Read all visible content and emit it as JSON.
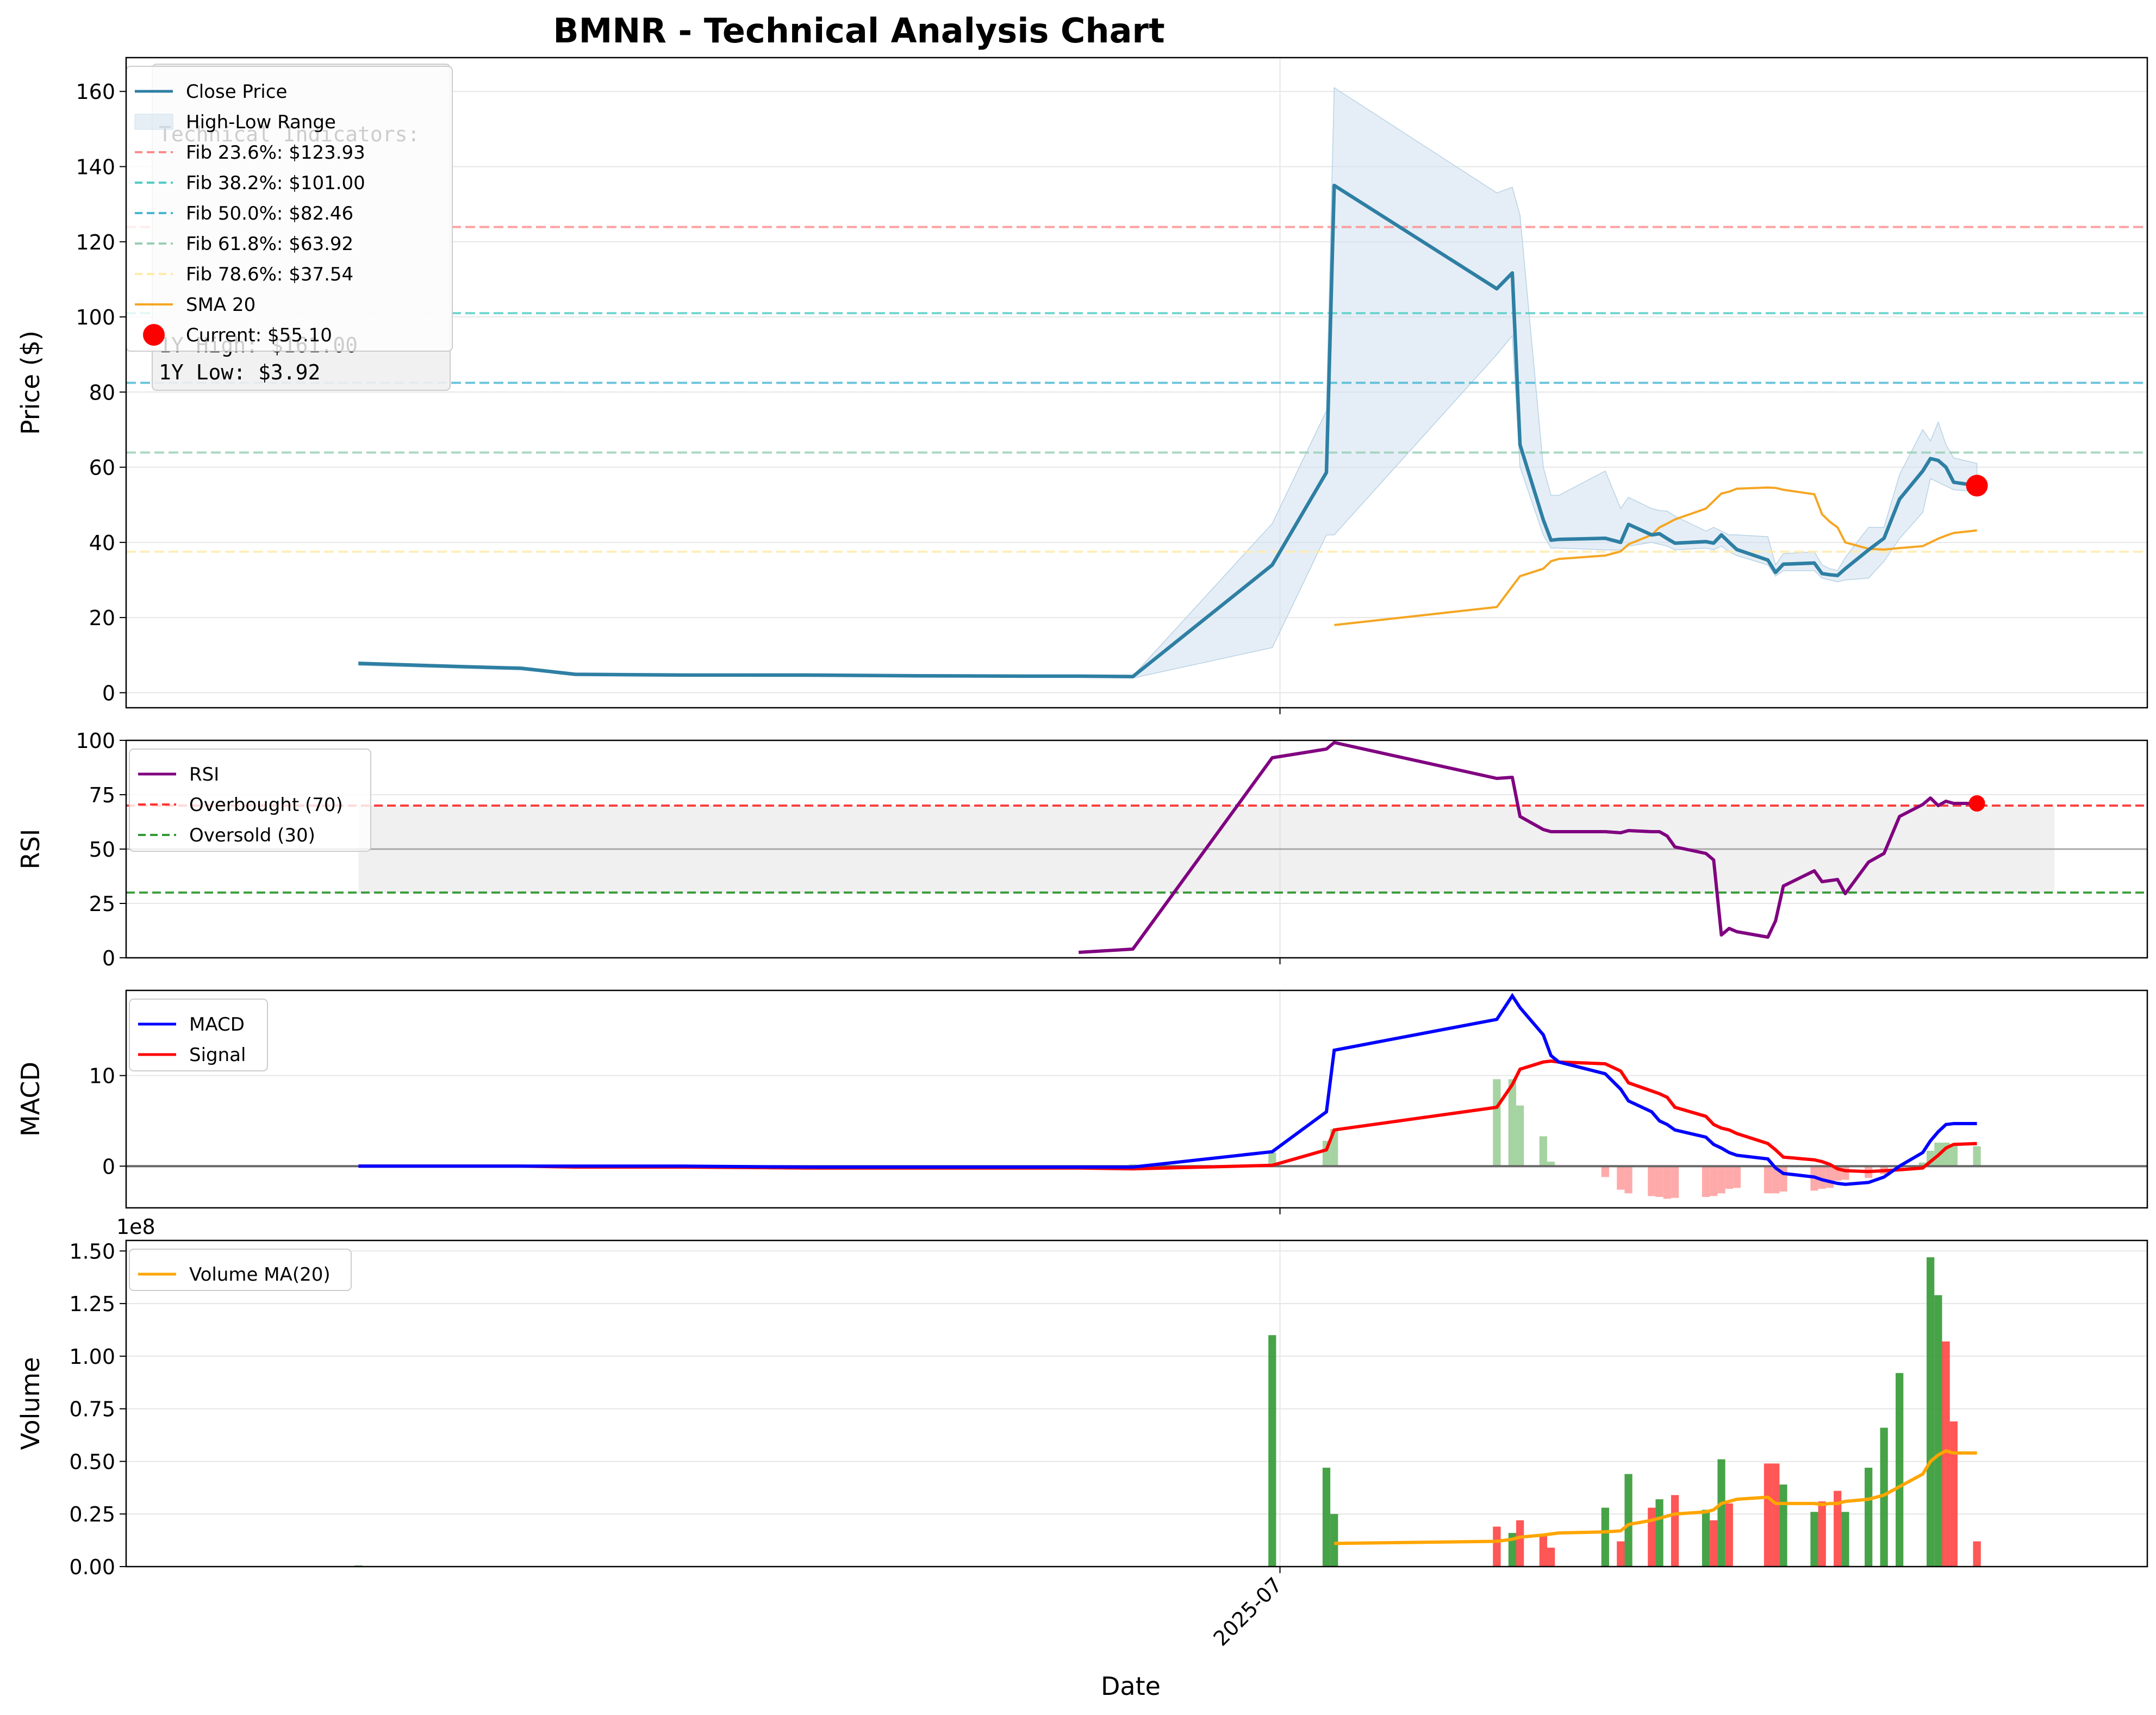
{
  "chart_data": {
    "title": "BMNR - Technical Analysis Chart",
    "xlabel": "Date",
    "x_tick_labels": [
      "2025-07"
    ],
    "dates": [
      "2025-03-04",
      "2025-03-18",
      "2025-03-25",
      "2025-04-01",
      "2025-04-15",
      "2025-05-01",
      "2025-05-15",
      "2025-05-29",
      "2025-06-05",
      "2025-06-12",
      "2025-06-30",
      "2025-07-07",
      "2025-07-08",
      "2025-07-09",
      "2025-07-10",
      "2025-07-29",
      "2025-07-31",
      "2025-08-01",
      "2025-08-04",
      "2025-08-05",
      "2025-08-06",
      "2025-08-12",
      "2025-08-14",
      "2025-08-15",
      "2025-08-18",
      "2025-08-19",
      "2025-08-20",
      "2025-08-21",
      "2025-08-25",
      "2025-08-26",
      "2025-08-27",
      "2025-08-28",
      "2025-08-29",
      "2025-09-02",
      "2025-09-03",
      "2025-09-04",
      "2025-09-08",
      "2025-09-09",
      "2025-09-10",
      "2025-09-11",
      "2025-09-12",
      "2025-09-15",
      "2025-09-17",
      "2025-09-19",
      "2025-09-22",
      "2025-09-23",
      "2025-09-24",
      "2025-09-25",
      "2025-09-26",
      "2025-09-29",
      "2025-10-01",
      "2025-10-02",
      "2025-10-03",
      "2025-10-06",
      "2025-10-07",
      "2025-10-08",
      "2025-10-09"
    ],
    "panels": [
      {
        "id": "price",
        "type": "line",
        "ylabel": "Price ($)",
        "ylim": [
          -4,
          169
        ],
        "yticks": [
          0,
          20,
          40,
          60,
          80,
          100,
          120,
          140,
          160
        ],
        "series": [
          {
            "name": "Close Price",
            "color": "#2e7fa3",
            "values": [
              7.8,
              6.9,
              6.5,
              4.9,
              4.7,
              4.7,
              4.5,
              4.4,
              4.4,
              4.3,
              34.0,
              58.6,
              135.0,
              null,
              null,
              107.5,
              111.7,
              66.0,
              46.0,
              40.6,
              40.8,
              41.1,
              40.0,
              44.8,
              42.0,
              42.3,
              41.0,
              39.8,
              40.2,
              39.8,
              42.0,
              40.0,
              38.1,
              35.3,
              32.0,
              34.2,
              34.5,
              31.7,
              31.4,
              31.2,
              33.0,
              38.0,
              41.1,
              51.5,
              59.0,
              62.3,
              61.8,
              60.0,
              56.0,
              55.1,
              null,
              null,
              null,
              null,
              null,
              null,
              null
            ]
          },
          {
            "name": "High-Low Range",
            "color": "#cfe0ee",
            "high": [
              8.2,
              7.1,
              6.7,
              5.2,
              4.9,
              4.9,
              4.7,
              4.6,
              4.6,
              4.5,
              45.0,
              75.0,
              161.0,
              null,
              null,
              133.0,
              134.5,
              127.0,
              60.0,
              52.5,
              52.5,
              59.0,
              49.0,
              52.0,
              49.0,
              48.5,
              48.3,
              47.0,
              43.0,
              44.0,
              43.0,
              42.0,
              42.0,
              41.5,
              34.0,
              37.0,
              37.5,
              34.0,
              33.0,
              32.5,
              36.0,
              44.0,
              44.0,
              58.0,
              70.0,
              67.0,
              72.0,
              66.0,
              62.5,
              61.0,
              null,
              null,
              null,
              null,
              null,
              null,
              null
            ],
            "low": [
              7.3,
              6.5,
              6.1,
              4.6,
              4.4,
              4.3,
              4.2,
              4.1,
              4.1,
              3.9,
              12.0,
              42.0,
              42.0,
              null,
              null,
              90.0,
              95.0,
              60.0,
              42.0,
              38.5,
              38.5,
              38.0,
              38.0,
              39.0,
              40.0,
              39.5,
              39.0,
              38.0,
              38.5,
              38.0,
              39.0,
              37.5,
              36.5,
              34.0,
              31.0,
              32.5,
              32.5,
              30.5,
              30.0,
              29.5,
              30.0,
              30.5,
              35.0,
              41.0,
              48.0,
              57.0,
              56.0,
              55.0,
              54.0,
              53.5,
              null,
              null,
              null,
              null,
              null,
              null,
              null
            ]
          },
          {
            "name": "SMA 20",
            "color": "#f5a623",
            "values": [
              null,
              null,
              null,
              null,
              null,
              null,
              null,
              null,
              null,
              null,
              null,
              null,
              18.0,
              null,
              null,
              22.8,
              28.3,
              31.0,
              33.0,
              35.0,
              35.6,
              36.5,
              37.6,
              39.5,
              42.0,
              44.0,
              45.0,
              46.1,
              49.0,
              51.0,
              53.0,
              53.5,
              54.3,
              54.6,
              54.5,
              54.0,
              52.8,
              47.5,
              45.5,
              44.0,
              40.0,
              38.3,
              38.1,
              38.5,
              39.0,
              40.0,
              41.0,
              41.8,
              42.5,
              43.2,
              null,
              null,
              null,
              null,
              null,
              null,
              null
            ]
          }
        ],
        "fibonacci": [
          {
            "label": "Fib 23.6%: $123.93",
            "value": 123.93,
            "color": "#ff8a8a"
          },
          {
            "label": "Fib 38.2%: $101.00",
            "value": 101.0,
            "color": "#4ecdc4"
          },
          {
            "label": "Fib 50.0%: $82.46",
            "value": 82.46,
            "color": "#45b7d1"
          },
          {
            "label": "Fib 61.8%: $63.92",
            "value": 63.92,
            "color": "#96ceb4"
          },
          {
            "label": "Fib 78.6%: $37.54",
            "value": 37.54,
            "color": "#ffeaa7"
          }
        ],
        "current": {
          "label": "Current: $55.10",
          "value": 55.1,
          "color": "#ff0000"
        },
        "legend": [
          "Close Price",
          "High-Low Range",
          "Fib 23.6%: $123.93",
          "Fib 38.2%: $101.00",
          "Fib 50.0%: $82.46",
          "Fib 61.8%: $63.92",
          "Fib 78.6%: $37.54",
          "SMA 20",
          "Current: $55.10"
        ],
        "info_box": [
          "Technical Indicators:",
          "1Y High: $161.00",
          "1Y Low: $3.92"
        ]
      },
      {
        "id": "rsi",
        "type": "line",
        "ylabel": "RSI",
        "ylim": [
          0,
          100
        ],
        "yticks": [
          0,
          25,
          50,
          75,
          100
        ],
        "series": [
          {
            "name": "RSI",
            "color": "#800080",
            "values": [
              null,
              null,
              null,
              null,
              null,
              null,
              null,
              null,
              2.5,
              4.0,
              92.0,
              96.0,
              99.0,
              null,
              null,
              82.5,
              83.0,
              65.0,
              59.0,
              58.0,
              58.0,
              58.0,
              57.5,
              58.5,
              58.0,
              58.0,
              56.0,
              51.0,
              48.0,
              45.0,
              10.5,
              13.5,
              12.0,
              9.5,
              17.0,
              33.0,
              40.0,
              35.0,
              35.5,
              36.0,
              29.5,
              44.0,
              48.0,
              65.0,
              70.5,
              73.5,
              70.0,
              72.0,
              71.0,
              71.0,
              null,
              null,
              null,
              null,
              null,
              null,
              null
            ]
          }
        ],
        "levels": [
          {
            "label": "Overbought (70)",
            "value": 70,
            "color": "#ff0000"
          },
          {
            "label": "Oversold (30)",
            "value": 30,
            "color": "#008000"
          }
        ],
        "midline": 50,
        "current": 71.0,
        "legend": [
          "RSI",
          "Overbought (70)",
          "Oversold (30)"
        ]
      },
      {
        "id": "macd",
        "type": "line",
        "ylabel": "MACD",
        "ylim": [
          -4.6,
          19.4
        ],
        "yticks": [
          0,
          10
        ],
        "series": [
          {
            "name": "MACD",
            "color": "#0000ff",
            "values": [
              0.0,
              0.0,
              0.0,
              0.0,
              0.0,
              -0.1,
              -0.1,
              -0.1,
              -0.1,
              -0.1,
              1.6,
              6.0,
              12.8,
              null,
              null,
              16.2,
              18.8,
              17.5,
              14.5,
              12.2,
              11.5,
              10.2,
              8.5,
              7.2,
              6.0,
              5.0,
              4.6,
              4.0,
              3.2,
              2.4,
              2.0,
              1.5,
              1.2,
              0.8,
              -0.2,
              -0.8,
              -1.2,
              -1.5,
              -1.7,
              -1.9,
              -2.0,
              -1.8,
              -1.2,
              0.0,
              1.5,
              2.8,
              3.8,
              4.6,
              4.7,
              4.7,
              null,
              null,
              null,
              null,
              null,
              null,
              null
            ]
          },
          {
            "name": "Signal",
            "color": "#ff0000",
            "values": [
              0.0,
              0.0,
              0.0,
              -0.1,
              -0.1,
              -0.2,
              -0.2,
              -0.2,
              -0.2,
              -0.3,
              0.1,
              1.8,
              4.0,
              null,
              null,
              6.5,
              9.0,
              10.7,
              11.5,
              11.6,
              11.5,
              11.3,
              10.5,
              9.2,
              8.3,
              8.0,
              7.6,
              6.5,
              5.5,
              4.6,
              4.2,
              4.0,
              3.6,
              2.5,
              1.8,
              1.0,
              0.7,
              0.5,
              0.2,
              -0.3,
              -0.5,
              -0.6,
              -0.5,
              -0.4,
              -0.2,
              0.5,
              1.2,
              2.0,
              2.4,
              2.5,
              null,
              null,
              null,
              null,
              null,
              null,
              null
            ]
          },
          {
            "name": "Histogram",
            "color_pos": "#a6d3a2",
            "color_neg": "#ffaaaa",
            "values": [
              0.0,
              0.0,
              0.0,
              0.1,
              0.1,
              0.1,
              0.1,
              0.1,
              0.1,
              0.2,
              1.5,
              2.8,
              4.1,
              null,
              null,
              9.6,
              9.6,
              6.7,
              3.3,
              0.5,
              null,
              -1.2,
              -2.6,
              -3.0,
              -3.3,
              -3.4,
              -3.6,
              -3.5,
              -3.4,
              -3.3,
              -3.0,
              -2.5,
              -2.4,
              -3.0,
              -3.0,
              -2.8,
              -2.7,
              -2.5,
              -2.4,
              -1.6,
              -1.5,
              -1.3,
              -0.9,
              -0.3,
              0.4,
              1.7,
              2.6,
              2.6,
              2.3,
              2.2,
              null,
              null,
              null,
              null,
              null,
              null,
              null
            ]
          }
        ],
        "legend": [
          "MACD",
          "Signal"
        ]
      },
      {
        "id": "volume",
        "type": "bar",
        "ylabel": "Volume",
        "exponent_label": "1e8",
        "ylim": [
          0,
          1.55
        ],
        "yticks": [
          0.0,
          0.25,
          0.5,
          0.75,
          1.0,
          1.25,
          1.5
        ],
        "yticklabels": [
          "0.00",
          "0.25",
          "0.50",
          "0.75",
          "1.00",
          "1.25",
          "1.50"
        ],
        "color_up": "#339933",
        "color_down": "#ff4444",
        "series": [
          {
            "name": "Volume",
            "values": [
              0.005,
              0.0,
              0.0,
              0.0,
              0.0,
              0.0,
              0.0,
              0.0,
              0.0,
              0.0,
              1.1,
              0.47,
              0.25,
              null,
              null,
              0.19,
              0.16,
              0.22,
              0.15,
              0.09,
              null,
              0.28,
              0.12,
              0.44,
              0.28,
              0.32,
              null,
              0.34,
              0.27,
              0.22,
              0.51,
              0.3,
              null,
              0.49,
              0.49,
              0.39,
              0.26,
              0.31,
              null,
              0.36,
              0.26,
              0.47,
              0.66,
              0.92,
              null,
              1.47,
              1.29,
              1.07,
              0.69,
              0.12,
              null,
              null,
              null,
              null,
              null,
              null,
              null
            ],
            "up": [
              true,
              true,
              true,
              true,
              true,
              true,
              true,
              true,
              true,
              true,
              true,
              true,
              true,
              true,
              true,
              false,
              true,
              false,
              false,
              false,
              true,
              true,
              false,
              true,
              false,
              true,
              true,
              false,
              true,
              false,
              true,
              false,
              true,
              false,
              false,
              true,
              true,
              false,
              true,
              false,
              true,
              true,
              true,
              true,
              true,
              true,
              true,
              false,
              false,
              false,
              true,
              true,
              true,
              true,
              true,
              true,
              true
            ]
          },
          {
            "name": "Volume MA(20)",
            "color": "#ffa500",
            "values": [
              null,
              null,
              null,
              null,
              null,
              null,
              null,
              null,
              null,
              null,
              null,
              null,
              0.11,
              null,
              null,
              0.12,
              0.13,
              0.14,
              0.15,
              0.155,
              0.16,
              0.165,
              0.17,
              0.2,
              0.22,
              0.23,
              0.24,
              0.25,
              0.26,
              0.27,
              0.3,
              0.31,
              0.32,
              0.33,
              0.3,
              0.3,
              0.3,
              0.295,
              0.3,
              0.3,
              0.31,
              0.32,
              0.34,
              0.38,
              0.44,
              0.5,
              0.53,
              0.55,
              0.54,
              0.54,
              null,
              null,
              null,
              null,
              null,
              null,
              null
            ]
          }
        ],
        "legend": [
          "Volume MA(20)"
        ]
      }
    ]
  }
}
